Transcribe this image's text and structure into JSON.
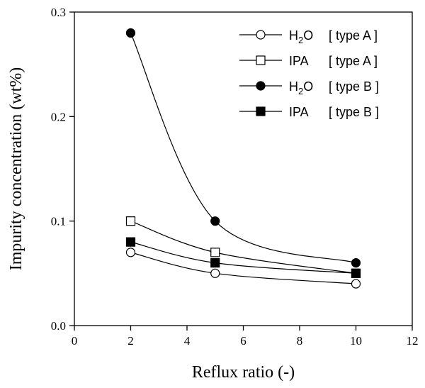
{
  "chart_data": {
    "type": "line",
    "title": "",
    "xlabel": "Reflux ratio (-)",
    "ylabel": "Impurity concentration (wt%)",
    "xlim": [
      0,
      12
    ],
    "ylim": [
      0.0,
      0.3
    ],
    "x_ticks": [
      "0",
      "2",
      "4",
      "6",
      "8",
      "10",
      "12"
    ],
    "y_ticks": [
      "0.0",
      "0.1",
      "0.2",
      "0.3"
    ],
    "grid": false,
    "legend_position": "top-right",
    "series": [
      {
        "name": "H2O [ type A ]",
        "legend": {
          "base": "H",
          "sub": "2",
          "rest": "O",
          "tag": "[ type A ]"
        },
        "marker": "circle",
        "filled": false,
        "x": [
          2,
          5,
          10
        ],
        "values": [
          0.07,
          0.05,
          0.04
        ]
      },
      {
        "name": "IPA [ type A ]",
        "legend": {
          "base": "IPA",
          "sub": "",
          "rest": "",
          "tag": "[ type A ]"
        },
        "marker": "square",
        "filled": false,
        "x": [
          2,
          5,
          10
        ],
        "values": [
          0.1,
          0.07,
          0.05
        ]
      },
      {
        "name": "H2O [ type B ]",
        "legend": {
          "base": "H",
          "sub": "2",
          "rest": "O",
          "tag": "[ type B ]"
        },
        "marker": "circle",
        "filled": true,
        "x": [
          2,
          5,
          10
        ],
        "values": [
          0.28,
          0.1,
          0.06
        ]
      },
      {
        "name": "IPA [ type B ]",
        "legend": {
          "base": "IPA",
          "sub": "",
          "rest": "",
          "tag": "[ type B ]"
        },
        "marker": "square",
        "filled": true,
        "x": [
          2,
          5,
          10
        ],
        "values": [
          0.08,
          0.06,
          0.05
        ]
      }
    ]
  }
}
